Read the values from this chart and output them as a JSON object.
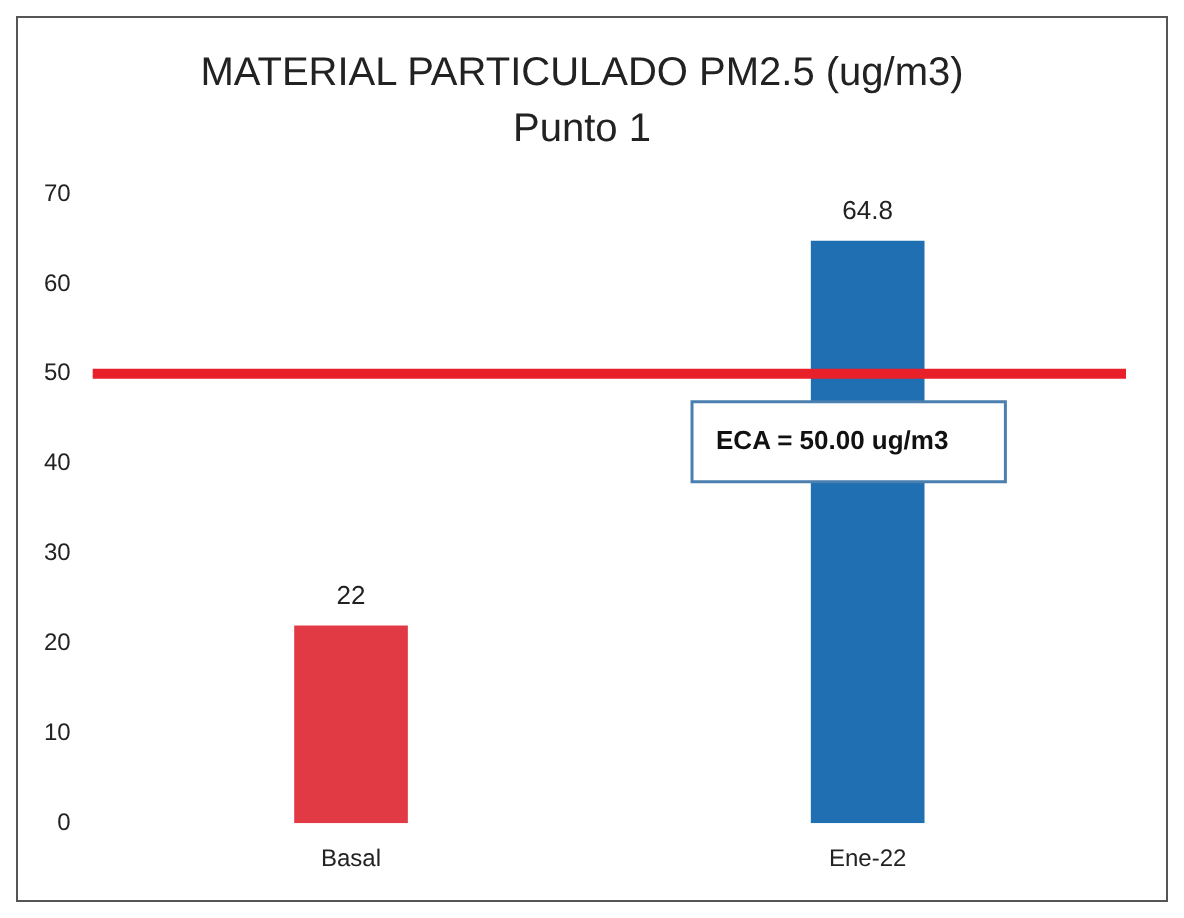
{
  "chart_data": {
    "type": "bar",
    "title": "MATERIAL PARTICULADO PM2.5 (ug/m3)",
    "subtitle": "Punto 1",
    "categories": [
      "Basal",
      "Ene-22"
    ],
    "values": [
      22,
      64.8
    ],
    "colors": [
      "#e23a44",
      "#1f6fb2"
    ],
    "ylim": [
      0,
      70
    ],
    "yticks": [
      0,
      10,
      20,
      30,
      40,
      50,
      60,
      70
    ],
    "grid": false,
    "legend": false,
    "data_labels": true,
    "ref_lines": [
      {
        "axis": "y",
        "value": 50,
        "label": "ECA = 50.00 ug/m3",
        "color": "#e8202a"
      }
    ]
  }
}
